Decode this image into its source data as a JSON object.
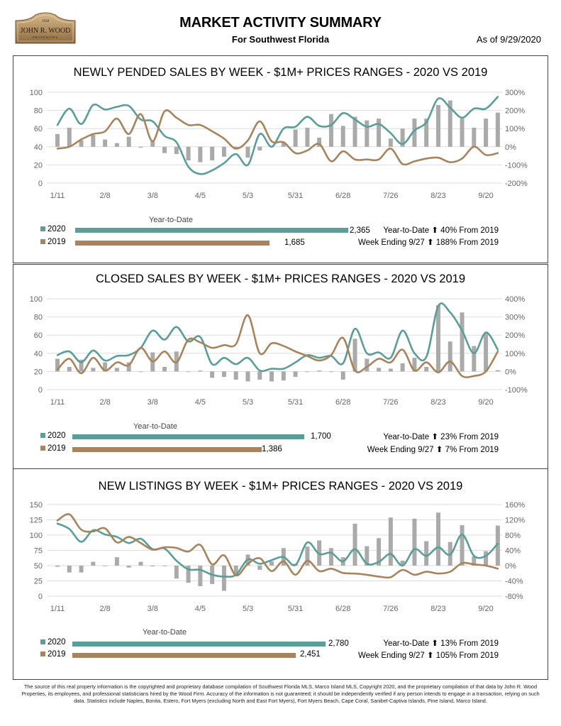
{
  "header": {
    "logo": {
      "year": "1958",
      "name": "JOHN R. WOOD",
      "sub": "PROPERTIES"
    },
    "title": "MARKET ACTIVITY SUMMARY",
    "subtitle": "For Southwest Florida",
    "as_of": "As of 9/29/2020"
  },
  "colors": {
    "series_2020": "#5b9e99",
    "series_2019": "#a8845e",
    "bars": "#aaaaaa",
    "grid": "#dddddd"
  },
  "sections": [
    {
      "title": "NEWLY PENDED SALES BY WEEK - $1M+ PRICES RANGES - 2020 VS 2019",
      "ytd_label": "Year-to-Date",
      "legend": [
        {
          "label": "2020",
          "value": 2365,
          "value_text": "2,365"
        },
        {
          "label": "2019",
          "value": 1685,
          "value_text": "1,685"
        }
      ],
      "summary": [
        "Year-to-Date ⬆  40% From 2019",
        "Week Ending 9/27 ⬆ 188% From 2019"
      ]
    },
    {
      "title": "CLOSED SALES BY WEEK - $1M+ PRICES RANGES - 2020 VS 2019",
      "ytd_label": "Year-to-Date",
      "legend": [
        {
          "label": "2020",
          "value": 1700,
          "value_text": "1,700"
        },
        {
          "label": "2019",
          "value": 1386,
          "value_text": "1,386"
        }
      ],
      "summary": [
        "Year-to-Date ⬆ 23% From 2019",
        "Week Ending 9/27 ⬆   7% From 2019"
      ]
    },
    {
      "title": "NEW LISTINGS BY WEEK - $1M+ PRICES RANGES - 2020 VS 2019",
      "ytd_label": "Year-to-Date",
      "legend": [
        {
          "label": "2020",
          "value": 2780,
          "value_text": "2,780"
        },
        {
          "label": "2019",
          "value": 2451,
          "value_text": "2,451"
        }
      ],
      "summary": [
        "Year-to-Date ⬆  13% From 2019",
        "Week Ending 9/27 ⬆ 105% From 2019"
      ]
    }
  ],
  "chart_data": [
    {
      "type": "line+bar",
      "title": "NEWLY PENDED SALES BY WEEK - $1M+ PRICES RANGES - 2020 VS 2019",
      "x_tick_labels": [
        "1/11",
        "2/8",
        "3/8",
        "4/5",
        "5/3",
        "5/31",
        "6/28",
        "7/26",
        "8/23",
        "9/20"
      ],
      "ylim": [
        0,
        100
      ],
      "yticks": [
        0,
        20,
        40,
        60,
        80,
        100
      ],
      "y2lim": [
        -200,
        300
      ],
      "y2ticks": [
        "-200%",
        "-100%",
        "0%",
        "100%",
        "200%",
        "300%"
      ],
      "grid": true,
      "series": [
        {
          "name": "2020",
          "axis": "left",
          "style": "smooth-line",
          "values": [
            64,
            82,
            65,
            86,
            81,
            84,
            85,
            70,
            68,
            52,
            45,
            18,
            10,
            14,
            22,
            32,
            20,
            54,
            40,
            60,
            62,
            73,
            63,
            64,
            77,
            70,
            62,
            65,
            55,
            43,
            58,
            67,
            93,
            83,
            72,
            82,
            82,
            95
          ]
        },
        {
          "name": "2019",
          "axis": "left",
          "style": "smooth-line",
          "values": [
            38,
            40,
            48,
            54,
            57,
            71,
            54,
            76,
            46,
            79,
            72,
            64,
            64,
            57,
            49,
            38,
            47,
            68,
            46,
            45,
            33,
            36,
            43,
            24,
            35,
            26,
            26,
            26,
            38,
            21,
            24,
            27,
            28,
            23,
            27,
            40,
            31,
            33
          ]
        },
        {
          "axis": "right",
          "style": "bar",
          "unit": "%",
          "values": [
            70,
            105,
            35,
            65,
            40,
            20,
            55,
            -5,
            35,
            -35,
            -40,
            -75,
            -85,
            -75,
            -55,
            -15,
            -60,
            -20,
            0,
            25,
            95,
            105,
            50,
            180,
            115,
            165,
            145,
            155,
            45,
            100,
            155,
            155,
            230,
            255,
            155,
            105,
            155,
            188
          ]
        }
      ]
    },
    {
      "type": "line+bar",
      "title": "CLOSED SALES BY WEEK - $1M+ PRICES RANGES - 2020 VS 2019",
      "x_tick_labels": [
        "1/11",
        "2/8",
        "3/8",
        "4/5",
        "5/3",
        "5/31",
        "6/28",
        "7/26",
        "8/23",
        "9/20"
      ],
      "ylim": [
        0,
        100
      ],
      "yticks": [
        0,
        20,
        40,
        60,
        80,
        100
      ],
      "y2lim": [
        -100,
        400
      ],
      "y2ticks": [
        "-100%",
        "0%",
        "100%",
        "200%",
        "300%",
        "400%"
      ],
      "grid": true,
      "series": [
        {
          "name": "2020",
          "axis": "left",
          "style": "smooth-line",
          "values": [
            38,
            42,
            30,
            43,
            32,
            37,
            38,
            46,
            65,
            55,
            69,
            53,
            58,
            28,
            35,
            28,
            35,
            21,
            23,
            23,
            30,
            38,
            35,
            37,
            29,
            67,
            40,
            41,
            35,
            65,
            40,
            36,
            92,
            85,
            65,
            40,
            63,
            44
          ]
        },
        {
          "name": "2019",
          "axis": "left",
          "style": "smooth-line",
          "values": [
            22,
            34,
            18,
            35,
            21,
            30,
            27,
            46,
            31,
            42,
            30,
            55,
            52,
            46,
            49,
            50,
            82,
            40,
            51,
            48,
            42,
            37,
            32,
            38,
            57,
            21,
            25,
            34,
            30,
            44,
            21,
            30,
            19,
            31,
            15,
            15,
            20,
            42
          ]
        },
        {
          "axis": "right",
          "style": "bar",
          "unit": "%",
          "values": [
            70,
            25,
            65,
            20,
            50,
            20,
            50,
            0,
            105,
            25,
            110,
            0,
            5,
            -35,
            -30,
            -45,
            -55,
            -45,
            -55,
            -50,
            -30,
            0,
            5,
            0,
            -45,
            180,
            70,
            20,
            15,
            45,
            75,
            25,
            365,
            165,
            325,
            140,
            210,
            7
          ]
        }
      ]
    },
    {
      "type": "line+bar",
      "title": "NEW LISTINGS BY WEEK - $1M+ PRICES RANGES - 2020 VS 2019",
      "x_tick_labels": [
        "1/11",
        "2/8",
        "3/8",
        "4/5",
        "5/3",
        "5/31",
        "6/28",
        "7/26",
        "8/23",
        "9/20"
      ],
      "ylim": [
        0,
        150
      ],
      "yticks": [
        0,
        25,
        50,
        75,
        100,
        125,
        150
      ],
      "y2lim": [
        -80,
        160
      ],
      "y2ticks": [
        "-80%",
        "-40%",
        "0%",
        "40%",
        "80%",
        "120%",
        "160%"
      ],
      "grid": true,
      "series": [
        {
          "name": "2020",
          "axis": "left",
          "style": "smooth-line",
          "values": [
            119,
            110,
            89,
            108,
            101,
            97,
            87,
            94,
            77,
            78,
            58,
            44,
            43,
            35,
            32,
            35,
            60,
            53,
            59,
            64,
            51,
            88,
            69,
            71,
            57,
            77,
            53,
            56,
            69,
            50,
            77,
            66,
            80,
            68,
            101,
            66,
            66,
            86
          ]
        },
        {
          "name": "2019",
          "axis": "left",
          "style": "smooth-line",
          "values": [
            124,
            134,
            109,
            106,
            111,
            88,
            97,
            87,
            76,
            80,
            79,
            73,
            84,
            52,
            67,
            34,
            53,
            62,
            41,
            57,
            35,
            58,
            41,
            45,
            38,
            37,
            35,
            32,
            31,
            43,
            35,
            40,
            37,
            40,
            54,
            52,
            50,
            45
          ]
        },
        {
          "axis": "right",
          "style": "bar",
          "unit": "%",
          "values": [
            -3,
            -18,
            -18,
            10,
            0,
            22,
            -5,
            10,
            -2,
            0,
            -34,
            -45,
            -54,
            -48,
            -66,
            -22,
            29,
            -11,
            11,
            46,
            5,
            50,
            66,
            46,
            22,
            110,
            51,
            72,
            126,
            13,
            123,
            64,
            139,
            62,
            106,
            24,
            38,
            105
          ]
        }
      ]
    }
  ],
  "footer": "The source of this real property information is the copyrighted and proprietary database compilation of Southwest Florida MLS, Marco Island MLS, Copyright 2020, and the proprietary compilation of that data by John R. Wood Properties, its employees, and professional statisticians hired by the Wood Firm. Accuracy of the information is not guaranteed; it should be independently verified if any person intends to engage in a transaction, relying on such data. Statistics include Naples, Bonita, Estero, Fort Myers (excluding North and East Fort Myers), Fort Myers Beach, Cape Coral, Sanibel-Captiva Islands, Pine Island, Marco Island."
}
